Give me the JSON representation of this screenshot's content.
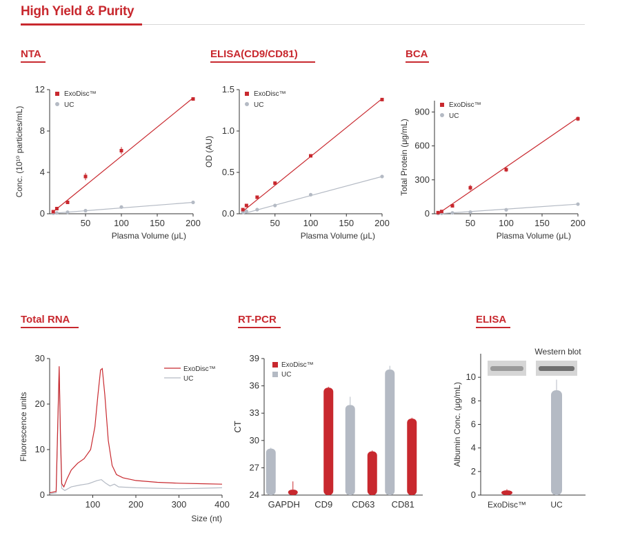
{
  "page": {
    "title": "High Yield & Purity",
    "panels": {
      "nta": "NTA",
      "elisa_cd": "ELISA(CD9/CD81)",
      "bca": "BCA",
      "rna": "Total RNA",
      "rtpcr": "RT-PCR",
      "elisa_alb": "ELISA"
    },
    "western_blot_label": "Western blot"
  },
  "colors": {
    "exodisc": "#c8282e",
    "uc": "#b4bac4",
    "accent": "#c8282e"
  },
  "chart_data": [
    {
      "id": "nta",
      "type": "scatter",
      "xlabel": "Plasma Volume (μL)",
      "ylabel": "Conc. (10¹⁰ particles/mL)",
      "xlim": [
        0,
        200
      ],
      "ylim": [
        0,
        12
      ],
      "xticks": [
        50,
        100,
        150,
        200
      ],
      "yticks": [
        0,
        4,
        8,
        12
      ],
      "legend": [
        "ExoDisc™",
        "UC"
      ],
      "series": [
        {
          "name": "ExoDisc™",
          "x": [
            5,
            10,
            25,
            50,
            100,
            200
          ],
          "y": [
            0.2,
            0.5,
            1.1,
            3.6,
            6.1,
            11.1
          ],
          "err": [
            0.05,
            0.1,
            0.1,
            0.35,
            0.35,
            0.15
          ],
          "fit": [
            [
              5,
              0.2
            ],
            [
              200,
              11.2
            ]
          ]
        },
        {
          "name": "UC",
          "x": [
            5,
            10,
            25,
            50,
            100,
            200
          ],
          "y": [
            0.05,
            0.08,
            0.15,
            0.3,
            0.65,
            1.1
          ],
          "err": [
            0,
            0,
            0,
            0,
            0,
            0
          ],
          "fit": [
            [
              5,
              0.05
            ],
            [
              200,
              1.1
            ]
          ]
        }
      ]
    },
    {
      "id": "elisa_cd",
      "type": "scatter",
      "xlabel": "Plasma Volume (μL)",
      "ylabel": "OD (AU)",
      "xlim": [
        0,
        200
      ],
      "ylim": [
        0,
        1.5
      ],
      "xticks": [
        50,
        100,
        150,
        200
      ],
      "yticks": [
        0.0,
        0.5,
        1.0,
        1.5
      ],
      "ytick_labels": [
        "0.0",
        "0.5",
        "1.0",
        "1.5"
      ],
      "legend": [
        "ExoDisc™",
        "UC"
      ],
      "series": [
        {
          "name": "ExoDisc™",
          "x": [
            5,
            10,
            25,
            50,
            100,
            200
          ],
          "y": [
            0.05,
            0.1,
            0.2,
            0.37,
            0.7,
            1.38
          ],
          "err": [
            0,
            0,
            0,
            0,
            0,
            0
          ],
          "fit": [
            [
              5,
              0.03
            ],
            [
              200,
              1.39
            ]
          ]
        },
        {
          "name": "UC",
          "x": [
            5,
            10,
            25,
            50,
            100,
            200
          ],
          "y": [
            0.02,
            0.03,
            0.05,
            0.1,
            0.23,
            0.45
          ],
          "err": [
            0,
            0,
            0,
            0,
            0,
            0
          ],
          "fit": [
            [
              5,
              0.0
            ],
            [
              200,
              0.45
            ]
          ]
        }
      ]
    },
    {
      "id": "bca",
      "type": "scatter",
      "xlabel": "Plasma Volume (μL)",
      "ylabel": "Total Protein (μg/mL)",
      "xlim": [
        0,
        200
      ],
      "ylim": [
        0,
        1000
      ],
      "xticks": [
        50,
        100,
        150,
        200
      ],
      "yticks": [
        0,
        300,
        600,
        900
      ],
      "legend": [
        "ExoDisc™",
        "UC"
      ],
      "series": [
        {
          "name": "ExoDisc™",
          "x": [
            5,
            10,
            25,
            50,
            100,
            200
          ],
          "y": [
            10,
            20,
            70,
            230,
            390,
            840
          ],
          "err": [
            5,
            5,
            10,
            25,
            20,
            20
          ],
          "fit": [
            [
              5,
              0
            ],
            [
              200,
              850
            ]
          ]
        },
        {
          "name": "UC",
          "x": [
            5,
            10,
            25,
            50,
            100,
            200
          ],
          "y": [
            2,
            4,
            8,
            15,
            35,
            85
          ],
          "err": [
            0,
            0,
            0,
            0,
            0,
            0
          ],
          "fit": [
            [
              5,
              0
            ],
            [
              200,
              85
            ]
          ]
        }
      ]
    },
    {
      "id": "rna",
      "type": "line",
      "xlabel": "Size (nt)",
      "ylabel": "Fluorescence units",
      "xlim": [
        0,
        400
      ],
      "ylim": [
        0,
        30
      ],
      "xticks": [
        100,
        200,
        300,
        400
      ],
      "yticks": [
        0,
        10,
        20,
        30
      ],
      "legend": [
        "ExoDisc™",
        "UC"
      ],
      "series": [
        {
          "name": "ExoDisc™",
          "x": [
            0,
            15,
            22,
            25,
            28,
            33,
            40,
            50,
            65,
            80,
            95,
            105,
            112,
            118,
            122,
            128,
            136,
            145,
            155,
            170,
            200,
            250,
            300,
            350,
            400
          ],
          "y": [
            0.5,
            0.8,
            28.3,
            14,
            2.5,
            1.8,
            3.5,
            5.5,
            7,
            8,
            10,
            15,
            22,
            27.5,
            27.8,
            22,
            12,
            6.5,
            4.5,
            3.8,
            3.2,
            2.8,
            2.6,
            2.5,
            2.4
          ]
        },
        {
          "name": "UC",
          "x": [
            0,
            15,
            22,
            25,
            28,
            35,
            50,
            70,
            90,
            110,
            120,
            130,
            140,
            150,
            160,
            200,
            250,
            300,
            350,
            400
          ],
          "y": [
            0.3,
            0.5,
            27.5,
            12,
            1.5,
            1,
            1.8,
            2.2,
            2.5,
            3.2,
            3.4,
            2.6,
            2,
            2.4,
            1.8,
            1.6,
            1.5,
            1.4,
            1.5,
            1.6
          ]
        }
      ]
    },
    {
      "id": "rtpcr",
      "type": "bar",
      "xlabel": "",
      "ylabel": "CT",
      "ylim": [
        24,
        39
      ],
      "yticks": [
        24,
        27,
        30,
        33,
        36,
        39
      ],
      "categories": [
        "GAPDH",
        "CD9",
        "CD63",
        "CD81"
      ],
      "legend": [
        "ExoDisc™",
        "UC"
      ],
      "series": [
        {
          "name": "UC",
          "values": [
            29.1,
            null,
            33.9,
            37.8
          ],
          "err": [
            0.1,
            0,
            0.9,
            0.4
          ]
        },
        {
          "name": "ExoDisc™",
          "values": [
            24.6,
            35.8,
            28.8,
            32.4
          ],
          "err": [
            0.9,
            0.1,
            0.1,
            0.1
          ]
        }
      ]
    },
    {
      "id": "elisa_alb",
      "type": "bar",
      "xlabel": "",
      "ylabel": "Albumin Conc. (μg/mL)",
      "ylim": [
        0,
        12
      ],
      "yticks": [
        0,
        2,
        4,
        6,
        8,
        10
      ],
      "categories": [
        "ExoDisc™",
        "UC"
      ],
      "values": [
        0.4,
        8.9
      ],
      "err": [
        0.1,
        0.9
      ]
    }
  ]
}
